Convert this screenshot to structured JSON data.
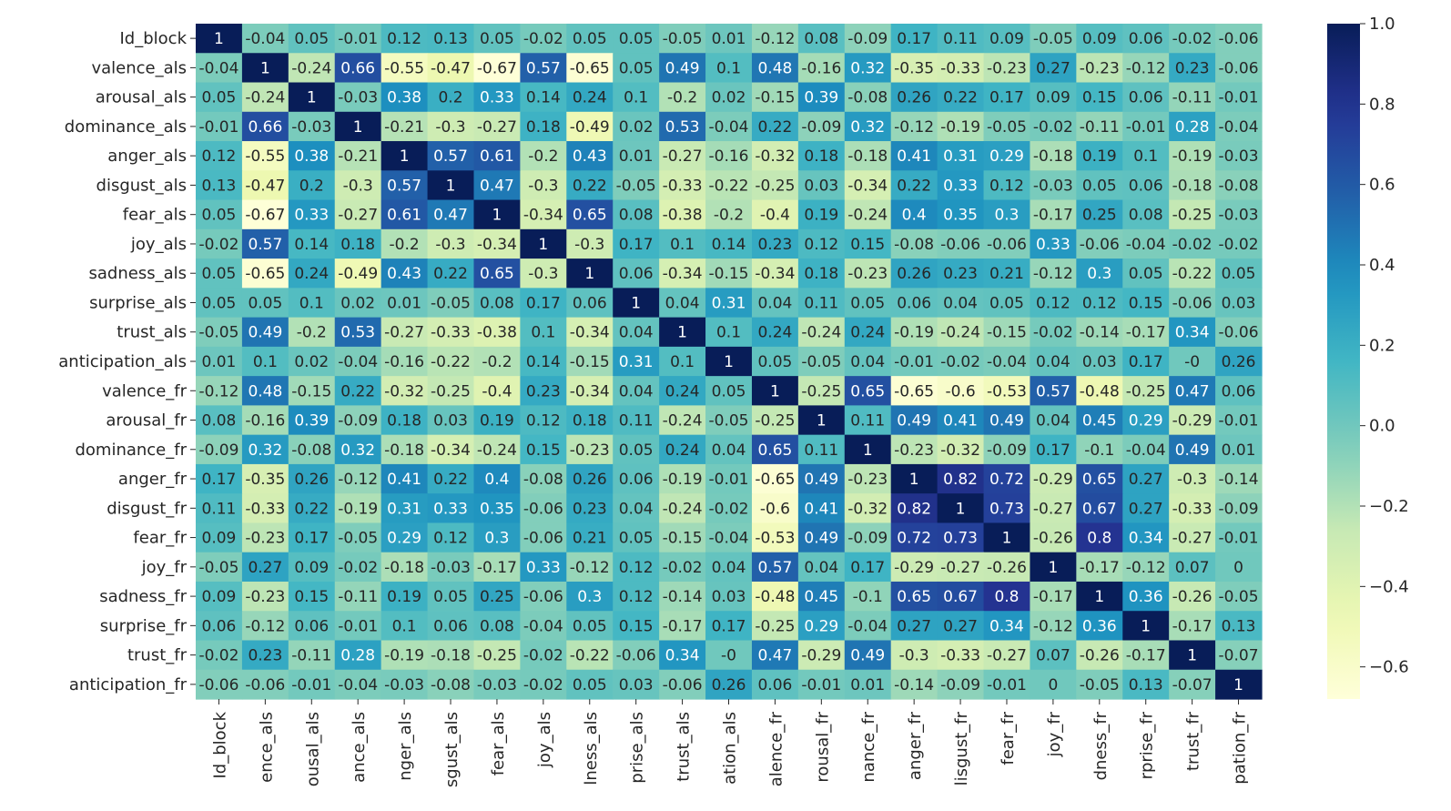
{
  "chart_data": {
    "type": "heatmap",
    "colormap": "YlGnBu",
    "vmin": -0.68,
    "vmax": 1.0,
    "labels": [
      "Id_block",
      "valence_als",
      "arousal_als",
      "dominance_als",
      "anger_als",
      "disgust_als",
      "fear_als",
      "joy_als",
      "sadness_als",
      "surprise_als",
      "trust_als",
      "anticipation_als",
      "valence_fr",
      "arousal_fr",
      "dominance_fr",
      "anger_fr",
      "disgust_fr",
      "fear_fr",
      "joy_fr",
      "sadness_fr",
      "surprise_fr",
      "trust_fr",
      "anticipation_fr"
    ],
    "x_tick_labels_visible": [
      "Id_block",
      "ence_als",
      "ousal_als",
      "ance_als",
      "nger_als",
      "sgust_als",
      "fear_als",
      "joy_als",
      "lness_als",
      "prise_als",
      "trust_als",
      "ation_als",
      "alence_fr",
      "rousal_fr",
      "nance_fr",
      "anger_fr",
      "lisgust_fr",
      "fear_fr",
      "joy_fr",
      "dness_fr",
      "rprise_fr",
      "trust_fr",
      "pation_fr"
    ],
    "values": [
      [
        1,
        -0.04,
        0.05,
        -0.01,
        0.12,
        0.13,
        0.05,
        -0.02,
        0.05,
        0.05,
        -0.05,
        0.01,
        -0.12,
        0.08,
        -0.09,
        0.17,
        0.11,
        0.09,
        -0.05,
        0.09,
        0.06,
        -0.02,
        -0.06
      ],
      [
        -0.04,
        1,
        -0.24,
        0.66,
        -0.55,
        -0.47,
        -0.67,
        0.57,
        -0.65,
        0.05,
        0.49,
        0.1,
        0.48,
        -0.16,
        0.32,
        -0.35,
        -0.33,
        -0.23,
        0.27,
        -0.23,
        -0.12,
        0.23,
        -0.06
      ],
      [
        0.05,
        -0.24,
        1,
        -0.03,
        0.38,
        0.2,
        0.33,
        0.14,
        0.24,
        0.1,
        -0.2,
        0.02,
        -0.15,
        0.39,
        -0.08,
        0.26,
        0.22,
        0.17,
        0.09,
        0.15,
        0.06,
        -0.11,
        -0.01
      ],
      [
        -0.01,
        0.66,
        -0.03,
        1,
        -0.21,
        -0.3,
        -0.27,
        0.18,
        -0.49,
        0.02,
        0.53,
        -0.04,
        0.22,
        -0.09,
        0.32,
        -0.12,
        -0.19,
        -0.05,
        -0.02,
        -0.11,
        -0.01,
        0.28,
        -0.04
      ],
      [
        0.12,
        -0.55,
        0.38,
        -0.21,
        1,
        0.57,
        0.61,
        -0.2,
        0.43,
        0.01,
        -0.27,
        -0.16,
        -0.32,
        0.18,
        -0.18,
        0.41,
        0.31,
        0.29,
        -0.18,
        0.19,
        0.1,
        -0.19,
        -0.03
      ],
      [
        0.13,
        -0.47,
        0.2,
        -0.3,
        0.57,
        1,
        0.47,
        -0.3,
        0.22,
        -0.05,
        -0.33,
        -0.22,
        -0.25,
        0.03,
        -0.34,
        0.22,
        0.33,
        0.12,
        -0.03,
        0.05,
        0.06,
        -0.18,
        -0.08
      ],
      [
        0.05,
        -0.67,
        0.33,
        -0.27,
        0.61,
        0.47,
        1,
        -0.34,
        0.65,
        0.08,
        -0.38,
        -0.2,
        -0.4,
        0.19,
        -0.24,
        0.4,
        0.35,
        0.3,
        -0.17,
        0.25,
        0.08,
        -0.25,
        -0.03
      ],
      [
        -0.02,
        0.57,
        0.14,
        0.18,
        -0.2,
        -0.3,
        -0.34,
        1,
        -0.3,
        0.17,
        0.1,
        0.14,
        0.23,
        0.12,
        0.15,
        -0.08,
        -0.06,
        -0.06,
        0.33,
        -0.06,
        -0.04,
        -0.02,
        -0.02
      ],
      [
        0.05,
        -0.65,
        0.24,
        -0.49,
        0.43,
        0.22,
        0.65,
        -0.3,
        1,
        0.06,
        -0.34,
        -0.15,
        -0.34,
        0.18,
        -0.23,
        0.26,
        0.23,
        0.21,
        -0.12,
        0.3,
        0.05,
        -0.22,
        0.05
      ],
      [
        0.05,
        0.05,
        0.1,
        0.02,
        0.01,
        -0.05,
        0.08,
        0.17,
        0.06,
        1,
        0.04,
        0.31,
        0.04,
        0.11,
        0.05,
        0.06,
        0.04,
        0.05,
        0.12,
        0.12,
        0.15,
        -0.06,
        0.03
      ],
      [
        -0.05,
        0.49,
        -0.2,
        0.53,
        -0.27,
        -0.33,
        -0.38,
        0.1,
        -0.34,
        0.04,
        1,
        0.1,
        0.24,
        -0.24,
        0.24,
        -0.19,
        -0.24,
        -0.15,
        -0.02,
        -0.14,
        -0.17,
        0.34,
        -0.06
      ],
      [
        0.01,
        0.1,
        0.02,
        -0.04,
        -0.16,
        -0.22,
        -0.2,
        0.14,
        -0.15,
        0.31,
        0.1,
        1,
        0.05,
        -0.05,
        0.04,
        -0.01,
        -0.02,
        -0.04,
        0.04,
        0.03,
        0.17,
        "-0",
        0.26
      ],
      [
        -0.12,
        0.48,
        -0.15,
        0.22,
        -0.32,
        -0.25,
        -0.4,
        0.23,
        -0.34,
        0.04,
        0.24,
        0.05,
        1,
        -0.25,
        0.65,
        -0.65,
        -0.6,
        -0.53,
        0.57,
        -0.48,
        -0.25,
        0.47,
        0.06
      ],
      [
        0.08,
        -0.16,
        0.39,
        -0.09,
        0.18,
        0.03,
        0.19,
        0.12,
        0.18,
        0.11,
        -0.24,
        -0.05,
        -0.25,
        1,
        0.11,
        0.49,
        0.41,
        0.49,
        0.04,
        0.45,
        0.29,
        -0.29,
        -0.01
      ],
      [
        -0.09,
        0.32,
        -0.08,
        0.32,
        -0.18,
        -0.34,
        -0.24,
        0.15,
        -0.23,
        0.05,
        0.24,
        0.04,
        0.65,
        0.11,
        1,
        -0.23,
        -0.32,
        -0.09,
        0.17,
        -0.1,
        -0.04,
        0.49,
        0.01
      ],
      [
        0.17,
        -0.35,
        0.26,
        -0.12,
        0.41,
        0.22,
        0.4,
        -0.08,
        0.26,
        0.06,
        -0.19,
        -0.01,
        -0.65,
        0.49,
        -0.23,
        1,
        0.82,
        0.72,
        -0.29,
        0.65,
        0.27,
        -0.3,
        -0.14
      ],
      [
        0.11,
        -0.33,
        0.22,
        -0.19,
        0.31,
        0.33,
        0.35,
        -0.06,
        0.23,
        0.04,
        -0.24,
        -0.02,
        -0.6,
        0.41,
        -0.32,
        0.82,
        1,
        0.73,
        -0.27,
        0.67,
        0.27,
        -0.33,
        -0.09
      ],
      [
        0.09,
        -0.23,
        0.17,
        -0.05,
        0.29,
        0.12,
        0.3,
        -0.06,
        0.21,
        0.05,
        -0.15,
        -0.04,
        -0.53,
        0.49,
        -0.09,
        0.72,
        0.73,
        1,
        -0.26,
        0.8,
        0.34,
        -0.27,
        -0.01
      ],
      [
        -0.05,
        0.27,
        0.09,
        -0.02,
        -0.18,
        -0.03,
        -0.17,
        0.33,
        -0.12,
        0.12,
        -0.02,
        0.04,
        0.57,
        0.04,
        0.17,
        -0.29,
        -0.27,
        -0.26,
        1,
        -0.17,
        -0.12,
        0.07,
        0
      ],
      [
        0.09,
        -0.23,
        0.15,
        -0.11,
        0.19,
        0.05,
        0.25,
        -0.06,
        0.3,
        0.12,
        -0.14,
        0.03,
        -0.48,
        0.45,
        -0.1,
        0.65,
        0.67,
        0.8,
        -0.17,
        1,
        0.36,
        -0.26,
        -0.05
      ],
      [
        0.06,
        -0.12,
        0.06,
        -0.01,
        0.1,
        0.06,
        0.08,
        -0.04,
        0.05,
        0.15,
        -0.17,
        0.17,
        -0.25,
        0.29,
        -0.04,
        0.27,
        0.27,
        0.34,
        -0.12,
        0.36,
        1,
        -0.17,
        0.13
      ],
      [
        -0.02,
        0.23,
        -0.11,
        0.28,
        -0.19,
        -0.18,
        -0.25,
        -0.02,
        -0.22,
        -0.06,
        0.34,
        "-0",
        0.47,
        -0.29,
        0.49,
        -0.3,
        -0.33,
        -0.27,
        0.07,
        -0.26,
        -0.17,
        1,
        -0.07
      ],
      [
        -0.06,
        -0.06,
        -0.01,
        -0.04,
        -0.03,
        -0.08,
        -0.03,
        -0.02,
        0.05,
        0.03,
        -0.06,
        0.26,
        0.06,
        -0.01,
        0.01,
        -0.14,
        -0.09,
        -0.01,
        0,
        -0.05,
        0.13,
        -0.07,
        1
      ]
    ],
    "colorbar": {
      "ticks": [
        1.0,
        0.8,
        0.6,
        0.4,
        0.2,
        0.0,
        -0.2,
        -0.4,
        -0.6
      ],
      "tick_labels": [
        "1.0",
        "0.8",
        "0.6",
        "0.4",
        "0.2",
        "0.0",
        "−0.2",
        "−0.4",
        "−0.6"
      ]
    },
    "title": "",
    "xlabel": "",
    "ylabel": ""
  }
}
